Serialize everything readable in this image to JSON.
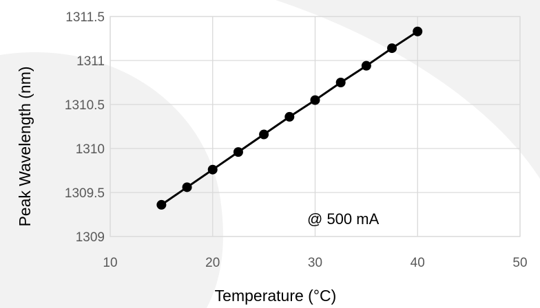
{
  "chart_data": {
    "type": "line",
    "title": "",
    "xlabel": "Temperature (°C)",
    "ylabel": "Peak Wavelength (nm)",
    "xlim": [
      10,
      50
    ],
    "ylim": [
      1309,
      1311.5
    ],
    "x_ticks": [
      "10",
      "20",
      "30",
      "40",
      "50"
    ],
    "y_ticks": [
      "1309",
      "1309.5",
      "1310",
      "1310.5",
      "1311",
      "1311.5"
    ],
    "grid": true,
    "legend": "none",
    "annotation": "@ 500 mA",
    "series": [
      {
        "x": [
          15,
          17.5,
          20,
          22.5,
          25,
          27.5,
          30,
          32.5,
          35,
          37.5,
          40
        ],
        "y": [
          1309.36,
          1309.56,
          1309.76,
          1309.96,
          1310.16,
          1310.36,
          1310.55,
          1310.75,
          1310.94,
          1311.14,
          1311.33
        ],
        "color": "#000000",
        "marker": "circle"
      }
    ]
  },
  "colors": {
    "background_shape": "#f2f2f2",
    "gridline": "#d9d9d9",
    "tick_label": "#595959",
    "series": "#000000"
  }
}
